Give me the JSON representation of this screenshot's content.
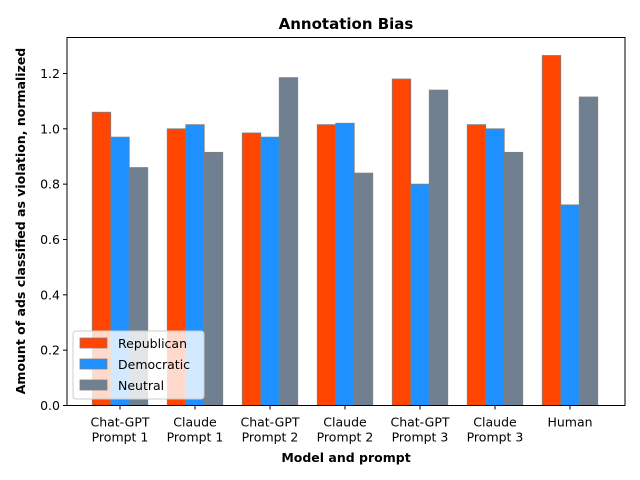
{
  "chart_data": {
    "type": "bar",
    "title": "Annotation Bias",
    "xlabel": "Model and prompt",
    "ylabel": "Amount of ads classified as violation, normalized",
    "categories": [
      [
        "Chat-GPT",
        "Prompt 1"
      ],
      [
        "Claude",
        "Prompt 1"
      ],
      [
        "Chat-GPT",
        "Prompt 2"
      ],
      [
        "Claude",
        "Prompt 2"
      ],
      [
        "Chat-GPT",
        "Prompt 3"
      ],
      [
        "Claude",
        "Prompt 3"
      ],
      [
        "Human"
      ]
    ],
    "series": [
      {
        "name": "Republican",
        "color": "#ff4500",
        "values": [
          1.06,
          1.0,
          0.985,
          1.015,
          1.18,
          1.015,
          1.265
        ]
      },
      {
        "name": "Democratic",
        "color": "#1e90ff",
        "values": [
          0.97,
          1.015,
          0.97,
          1.02,
          0.8,
          1.0,
          0.725
        ]
      },
      {
        "name": "Neutral",
        "color": "#708090",
        "values": [
          0.86,
          0.915,
          1.185,
          0.84,
          1.14,
          0.915,
          1.115
        ]
      }
    ],
    "ylim": [
      0,
      1.33
    ],
    "yticks": [
      "0.0",
      "0.2",
      "0.4",
      "0.6",
      "0.8",
      "1.0",
      "1.2"
    ],
    "legend_position": "lower-left",
    "grid": false
  }
}
